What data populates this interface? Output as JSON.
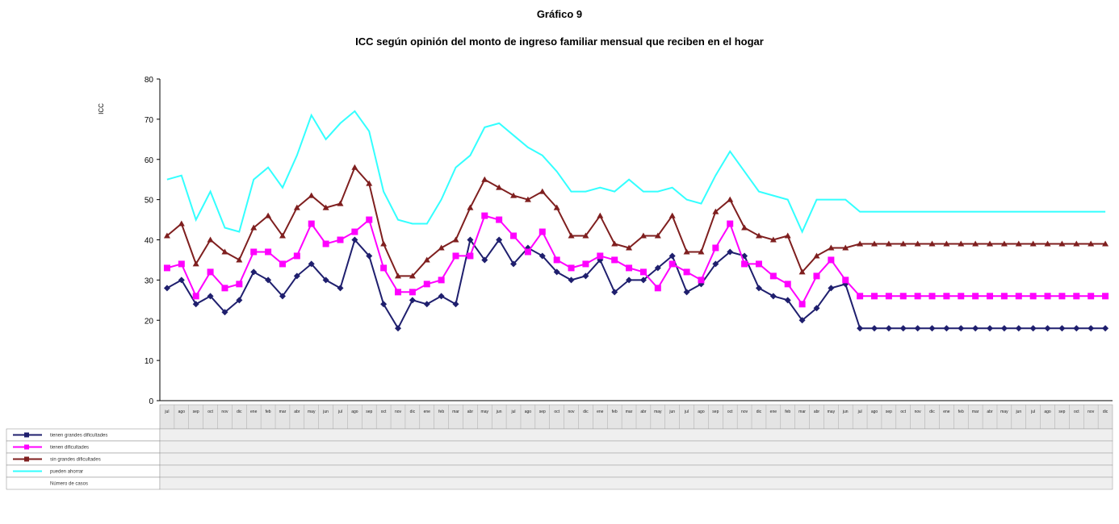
{
  "title": "Gráfico 9",
  "subtitle": "ICC según opinión del monto de ingreso familiar mensual que reciben en el hogar",
  "chart_data": {
    "type": "line",
    "ylabel": "ICC",
    "ylim": [
      0,
      80
    ],
    "yticks": [
      0,
      10,
      20,
      30,
      40,
      50,
      60,
      70,
      80
    ],
    "grid": false,
    "legend": "data-table-left",
    "categories": [
      "jul",
      "ago",
      "sep",
      "oct",
      "nov",
      "dic",
      "ene",
      "feb",
      "mar",
      "abr",
      "may",
      "jun",
      "jul",
      "ago",
      "sep",
      "oct",
      "nov",
      "dic",
      "ene",
      "feb",
      "mar",
      "abr",
      "may",
      "jun",
      "jul",
      "ago",
      "sep",
      "oct",
      "nov",
      "dic",
      "ene",
      "feb",
      "mar",
      "abr",
      "may",
      "jun",
      "jul",
      "ago",
      "sep",
      "oct",
      "nov",
      "dic",
      "ene",
      "feb",
      "mar",
      "abr",
      "may",
      "jun",
      "jul",
      "ago",
      "sep",
      "oct",
      "nov",
      "dic",
      "ene",
      "feb",
      "mar",
      "abr",
      "may",
      "jun",
      "jul",
      "ago",
      "sep",
      "oct",
      "nov",
      "dic"
    ],
    "series": [
      {
        "name": "tienen grandes dificultades",
        "color": "#1f1f6e",
        "marker": "diamond",
        "values": [
          28,
          30,
          24,
          26,
          22,
          25,
          32,
          30,
          26,
          31,
          34,
          30,
          28,
          40,
          36,
          24,
          18,
          25,
          24,
          26,
          24,
          40,
          35,
          40,
          34,
          38,
          36,
          32,
          30,
          31,
          35,
          27,
          30,
          30,
          33,
          36,
          27,
          29,
          34,
          37,
          36,
          28,
          26,
          25,
          20,
          23,
          28,
          29,
          18,
          18,
          18,
          18,
          18,
          18,
          18,
          18,
          18,
          18,
          18,
          18,
          18,
          18,
          18,
          18,
          18,
          18
        ]
      },
      {
        "name": "tienen dificultades",
        "color": "#ff00ff",
        "marker": "square",
        "values": [
          33,
          34,
          26,
          32,
          28,
          29,
          37,
          37,
          34,
          36,
          44,
          39,
          40,
          42,
          45,
          33,
          27,
          27,
          29,
          30,
          36,
          36,
          46,
          45,
          41,
          37,
          42,
          35,
          33,
          34,
          36,
          35,
          33,
          32,
          28,
          34,
          32,
          30,
          38,
          44,
          34,
          34,
          31,
          29,
          24,
          31,
          35,
          30,
          26,
          26,
          26,
          26,
          26,
          26,
          26,
          26,
          26,
          26,
          26,
          26,
          26,
          26,
          26,
          26,
          26,
          26
        ]
      },
      {
        "name": "sin grandes dificultades",
        "color": "#7f1f1f",
        "marker": "triangle",
        "values": [
          41,
          44,
          34,
          40,
          37,
          35,
          43,
          46,
          41,
          48,
          51,
          48,
          49,
          58,
          54,
          39,
          31,
          31,
          35,
          38,
          40,
          48,
          55,
          53,
          51,
          50,
          52,
          48,
          41,
          41,
          46,
          39,
          38,
          41,
          41,
          46,
          37,
          37,
          47,
          50,
          43,
          41,
          40,
          41,
          32,
          36,
          38,
          38,
          39,
          39,
          39,
          39,
          39,
          39,
          39,
          39,
          39,
          39,
          39,
          39,
          39,
          39,
          39,
          39,
          39,
          39
        ]
      },
      {
        "name": "pueden ahorrar",
        "color": "#33ffff",
        "marker": "none",
        "values": [
          55,
          56,
          45,
          52,
          43,
          42,
          55,
          58,
          53,
          61,
          71,
          65,
          69,
          72,
          67,
          52,
          45,
          44,
          44,
          50,
          58,
          61,
          68,
          69,
          66,
          63,
          61,
          57,
          52,
          52,
          53,
          52,
          55,
          52,
          52,
          53,
          50,
          49,
          56,
          62,
          57,
          52,
          51,
          50,
          42,
          50,
          50,
          50,
          47,
          47,
          47,
          47,
          47,
          47,
          47,
          47,
          47,
          47,
          47,
          47,
          47,
          47,
          47,
          47,
          47,
          47
        ]
      }
    ],
    "extra_table_rows": [
      "Número de casos"
    ]
  }
}
